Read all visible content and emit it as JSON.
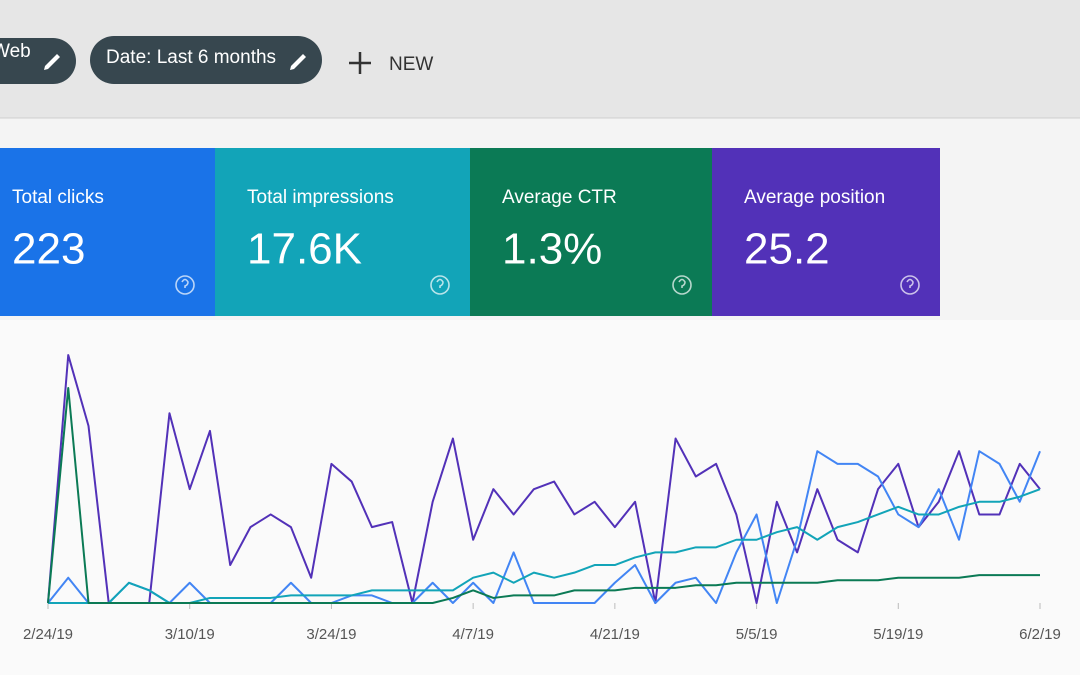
{
  "toolbar": {
    "chips": [
      "Web",
      "Date: Last 6 months"
    ],
    "new_button": "NEW"
  },
  "cards": [
    {
      "title": "Total clicks",
      "value": "223",
      "color": "#1a73e8"
    },
    {
      "title": "Total impressions",
      "value": "17.6K",
      "color": "#12a4b8"
    },
    {
      "title": "Average CTR",
      "value": "1.3%",
      "color": "#0b7a55"
    },
    {
      "title": "Average position",
      "value": "25.2",
      "color": "#5231b8"
    }
  ],
  "chart_data": {
    "type": "line",
    "x": [
      0,
      2,
      4,
      6,
      8,
      10,
      12,
      14,
      16,
      18,
      20,
      22,
      24,
      26,
      28,
      30,
      32,
      34,
      36,
      38,
      40,
      42,
      44,
      46,
      48,
      50,
      52,
      54,
      56,
      58,
      60,
      62,
      64,
      66,
      68,
      70,
      72,
      74,
      76,
      78,
      80,
      82,
      84,
      86,
      88,
      90,
      92,
      94,
      96,
      98
    ],
    "xlim": [
      0,
      98
    ],
    "ylim": [
      0,
      100
    ],
    "xticks": [
      {
        "value": 0,
        "label": "2/24/19"
      },
      {
        "value": 14,
        "label": "3/10/19"
      },
      {
        "value": 28,
        "label": "3/24/19"
      },
      {
        "value": 42,
        "label": "4/7/19"
      },
      {
        "value": 56,
        "label": "4/21/19"
      },
      {
        "value": 70,
        "label": "5/5/19"
      },
      {
        "value": 84,
        "label": "5/19/19"
      },
      {
        "value": 98,
        "label": "6/2/19"
      }
    ],
    "series": [
      {
        "color": "#5231b8",
        "values": [
          0,
          98,
          70,
          0,
          0,
          0,
          75,
          45,
          68,
          15,
          30,
          35,
          30,
          10,
          55,
          48,
          30,
          32,
          0,
          40,
          65,
          25,
          45,
          35,
          45,
          48,
          35,
          40,
          30,
          40,
          0,
          65,
          50,
          55,
          35,
          0,
          40,
          20,
          45,
          25,
          20,
          45,
          55,
          30,
          40,
          60,
          35,
          35,
          55,
          45
        ]
      },
      {
        "color": "#4285f4",
        "values": [
          0,
          10,
          0,
          0,
          8,
          5,
          0,
          8,
          0,
          0,
          0,
          0,
          8,
          0,
          0,
          3,
          3,
          0,
          0,
          8,
          0,
          8,
          0,
          20,
          0,
          0,
          0,
          0,
          8,
          15,
          0,
          8,
          10,
          0,
          20,
          35,
          0,
          25,
          60,
          55,
          55,
          50,
          35,
          30,
          45,
          25,
          60,
          55,
          40,
          60
        ]
      },
      {
        "color": "#12a4b8",
        "values": [
          0,
          0,
          0,
          0,
          8,
          5,
          0,
          0,
          2,
          2,
          2,
          2,
          3,
          3,
          3,
          3,
          5,
          5,
          5,
          5,
          5,
          10,
          12,
          8,
          12,
          10,
          12,
          15,
          15,
          18,
          20,
          20,
          22,
          22,
          25,
          25,
          28,
          30,
          25,
          30,
          32,
          35,
          38,
          35,
          35,
          38,
          40,
          40,
          42,
          45
        ]
      },
      {
        "color": "#0b7a55",
        "values": [
          0,
          85,
          0,
          0,
          0,
          0,
          0,
          0,
          0,
          0,
          0,
          0,
          0,
          0,
          0,
          0,
          0,
          0,
          0,
          0,
          2,
          5,
          2,
          3,
          3,
          3,
          5,
          5,
          5,
          6,
          6,
          6,
          7,
          7,
          8,
          8,
          8,
          8,
          8,
          9,
          9,
          9,
          10,
          10,
          10,
          10,
          11,
          11,
          11,
          11
        ]
      }
    ]
  }
}
